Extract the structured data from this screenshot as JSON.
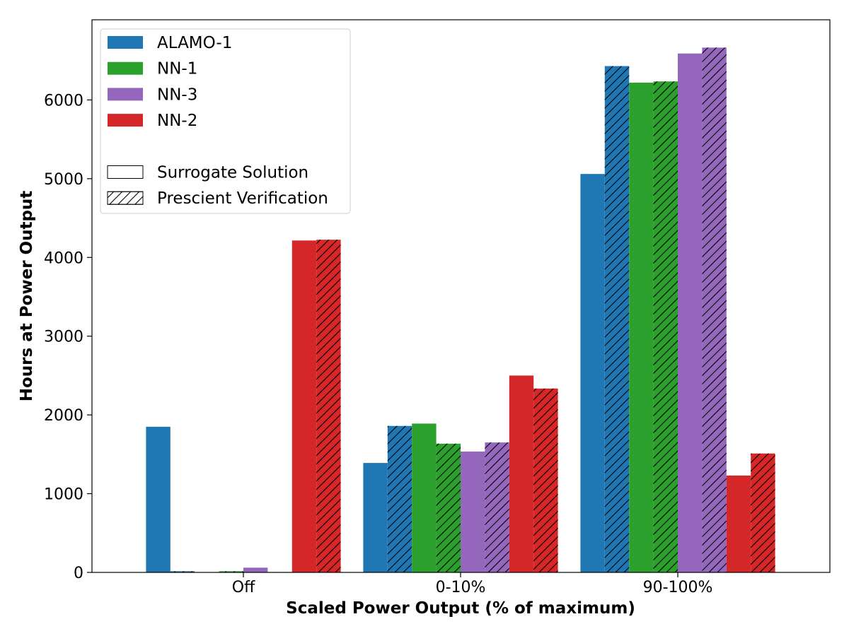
{
  "chart_data": {
    "type": "bar",
    "xlabel": "Scaled Power Output (% of maximum)",
    "ylabel": "Hours at Power Output",
    "categories": [
      "Off",
      "0-10%",
      "90-100%"
    ],
    "ylim": [
      0,
      7000
    ],
    "yticks": [
      0,
      1000,
      2000,
      3000,
      4000,
      5000,
      6000
    ],
    "grid": false,
    "legend_placement": "top-left",
    "series": [
      {
        "name": "ALAMO-1",
        "kind": "Surrogate Solution",
        "color": "#1f77b4",
        "hatched": false,
        "values": [
          1850,
          1390,
          5060
        ]
      },
      {
        "name": "ALAMO-1",
        "kind": "Prescient Verification",
        "color": "#1f77b4",
        "hatched": true,
        "values": [
          15,
          1860,
          6430
        ]
      },
      {
        "name": "NN-1",
        "kind": "Surrogate Solution",
        "color": "#2ca02c",
        "hatched": false,
        "values": [
          0,
          1890,
          6220
        ]
      },
      {
        "name": "NN-1",
        "kind": "Prescient Verification",
        "color": "#2ca02c",
        "hatched": true,
        "values": [
          15,
          1635,
          6235
        ]
      },
      {
        "name": "NN-3",
        "kind": "Surrogate Solution",
        "color": "#9467bd",
        "hatched": false,
        "values": [
          60,
          1535,
          6590
        ]
      },
      {
        "name": "NN-3",
        "kind": "Prescient Verification",
        "color": "#9467bd",
        "hatched": true,
        "values": [
          5,
          1650,
          6665
        ]
      },
      {
        "name": "NN-2",
        "kind": "Surrogate Solution",
        "color": "#d62728",
        "hatched": false,
        "values": [
          4215,
          2500,
          1230
        ]
      },
      {
        "name": "NN-2",
        "kind": "Prescient Verification",
        "color": "#d62728",
        "hatched": true,
        "values": [
          4225,
          2335,
          1510
        ]
      }
    ],
    "legend": {
      "models": [
        {
          "label": "ALAMO-1",
          "color": "#1f77b4"
        },
        {
          "label": "NN-1",
          "color": "#2ca02c"
        },
        {
          "label": "NN-3",
          "color": "#9467bd"
        },
        {
          "label": "NN-2",
          "color": "#d62728"
        }
      ],
      "styles": [
        {
          "label": "Surrogate Solution",
          "hatched": false
        },
        {
          "label": "Prescient Verification",
          "hatched": true
        }
      ]
    }
  }
}
